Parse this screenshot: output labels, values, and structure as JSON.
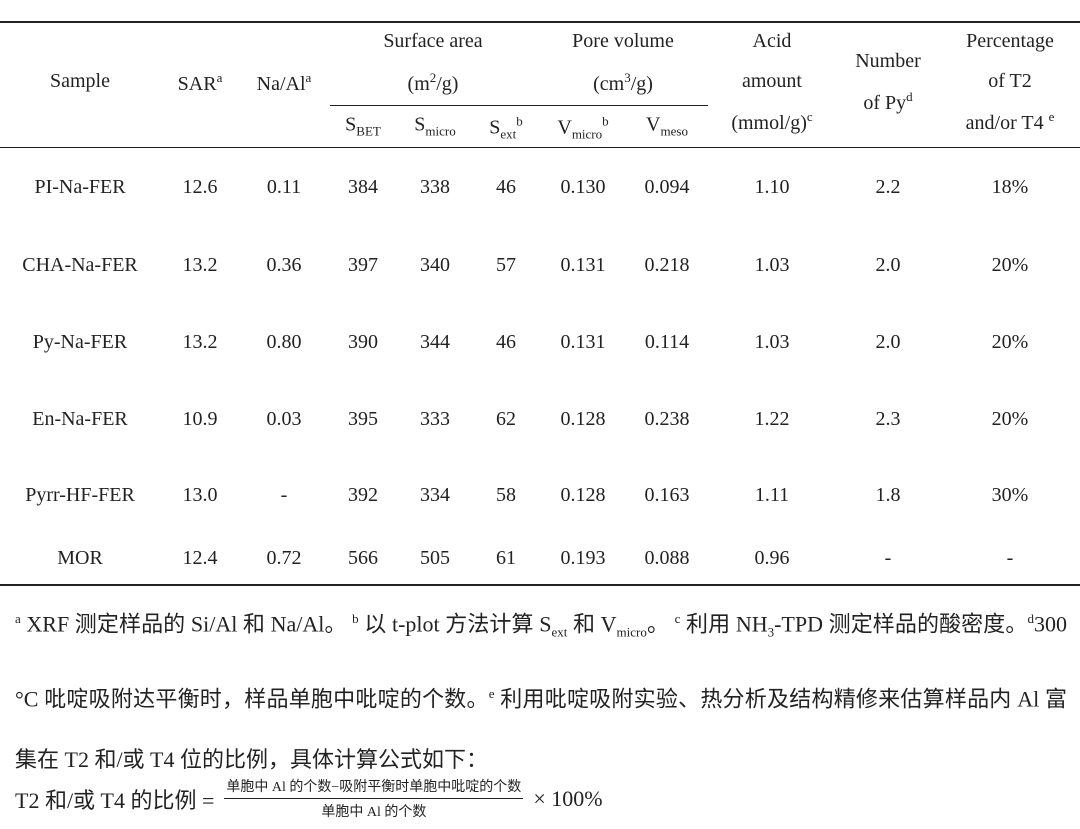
{
  "table": {
    "header": [
      [
        [
          {
            "text": "Sample"
          }
        ]
      ],
      [
        [
          {
            "text": "SAR"
          },
          {
            "sup": "a"
          }
        ]
      ],
      [
        [
          {
            "text": "Na/Al"
          },
          {
            "sup": "a"
          }
        ]
      ],
      [
        [
          {
            "text": "Surface area"
          }
        ],
        [
          {
            "text": "(m"
          },
          {
            "sup": "2"
          },
          {
            "text": "/g)"
          }
        ]
      ],
      [
        [
          {
            "text": "Pore volume"
          }
        ],
        [
          {
            "text": "(cm"
          },
          {
            "sup": "3"
          },
          {
            "text": "/g)"
          }
        ]
      ],
      [
        [
          {
            "text": "Acid"
          }
        ],
        [
          {
            "text": "amount"
          }
        ],
        [
          {
            "text": "(mmol/g)"
          },
          {
            "sup": "c"
          }
        ]
      ],
      [
        [
          {
            "text": "Number"
          }
        ],
        [
          {
            "text": "of Py"
          },
          {
            "sup": "d"
          }
        ]
      ],
      [
        [
          {
            "text": "Percentage"
          }
        ],
        [
          {
            "text": "of T2"
          }
        ],
        [
          {
            "text": "and/or T4 "
          },
          {
            "sup": "e"
          }
        ]
      ]
    ],
    "subheader": [
      [
        {
          "text": "S"
        },
        {
          "sub": "BET"
        }
      ],
      [
        {
          "text": "S"
        },
        {
          "sub": "micro"
        }
      ],
      [
        {
          "text": "S"
        },
        {
          "sub": "ext"
        },
        {
          "sup": "b"
        }
      ],
      [
        {
          "text": "V"
        },
        {
          "sub": "micro"
        },
        {
          "sup": "b"
        }
      ],
      [
        {
          "text": "V"
        },
        {
          "sub": "meso"
        }
      ]
    ],
    "rows": [
      [
        "PI-Na-FER",
        "12.6",
        "0.11",
        "384",
        "338",
        "46",
        "0.130",
        "0.094",
        "1.10",
        "2.2",
        "18%"
      ],
      [
        "CHA-Na-FER",
        "13.2",
        "0.36",
        "397",
        "340",
        "57",
        "0.131",
        "0.218",
        "1.03",
        "2.0",
        "20%"
      ],
      [
        "Py-Na-FER",
        "13.2",
        "0.80",
        "390",
        "344",
        "46",
        "0.131",
        "0.114",
        "1.03",
        "2.0",
        "20%"
      ],
      [
        "En-Na-FER",
        "10.9",
        "0.03",
        "395",
        "333",
        "62",
        "0.128",
        "0.238",
        "1.22",
        "2.3",
        "20%"
      ],
      [
        "Pyrr-HF-FER",
        "13.0",
        "-",
        "392",
        "334",
        "58",
        "0.128",
        "0.163",
        "1.11",
        "1.8",
        "30%"
      ],
      [
        "MOR",
        "12.4",
        "0.72",
        "566",
        "505",
        "61",
        "0.193",
        "0.088",
        "0.96",
        "-",
        "-"
      ]
    ]
  },
  "notes": [
    {
      "sup": "a"
    },
    {
      "text": " XRF 测定样品的 Si/Al 和 Na/Al。 "
    },
    {
      "sup": "b"
    },
    {
      "text": " 以 t-plot 方法计算 S"
    },
    {
      "sub": "ext"
    },
    {
      "text": " 和 V"
    },
    {
      "sub": "micro"
    },
    {
      "text": "。 "
    },
    {
      "sup": "c"
    },
    {
      "text": " 利用 NH"
    },
    {
      "sub": "3"
    },
    {
      "text": "-TPD 测定样品的酸密度。"
    },
    {
      "sup": "d"
    },
    {
      "text": "300 °C 吡啶吸附达平衡时，样品单胞中吡啶的个数。"
    },
    {
      "sup": "e"
    },
    {
      "text": " 利用吡啶吸附实验、热分析及结构精修来估算样品内 Al 富集在 T2 和/或 T4 位的比例，具体计算公式如下："
    }
  ],
  "formula": {
    "lhs": "T2 和/或 T4 的比例 =",
    "numerator": "单胞中 Al 的个数−吸附平衡时单胞中吡啶的个数",
    "denominator": "单胞中 Al 的个数",
    "rhs": "× 100%"
  }
}
